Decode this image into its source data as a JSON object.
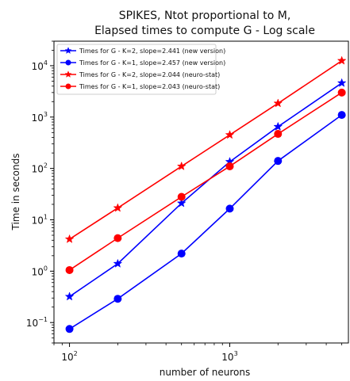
{
  "chart_data": {
    "type": "line",
    "title": "SPIKES, Ntot proportional to M,",
    "subtitle": "Elapsed times to compute G - Log scale",
    "xlabel": "number of neurons",
    "ylabel": "Time in seconds",
    "x_scale": "log",
    "y_scale": "log",
    "xlim": [
      80,
      5500
    ],
    "ylim": [
      0.04,
      30000
    ],
    "x_ticks": [
      {
        "value": 100,
        "base": "10",
        "exp": "2"
      },
      {
        "value": 1000,
        "base": "10",
        "exp": "3"
      }
    ],
    "y_ticks": [
      {
        "value": 0.1,
        "base": "10",
        "exp": "−1"
      },
      {
        "value": 1,
        "base": "10",
        "exp": "0"
      },
      {
        "value": 10,
        "base": "10",
        "exp": "1"
      },
      {
        "value": 100,
        "base": "10",
        "exp": "2"
      },
      {
        "value": 1000,
        "base": "10",
        "exp": "3"
      },
      {
        "value": 10000,
        "base": "10",
        "exp": "4"
      }
    ],
    "x": [
      100,
      200,
      500,
      1000,
      2000,
      5000
    ],
    "series": [
      {
        "name": "Times for G - K=2, slope=2.441 (new version)",
        "color": "#0000ff",
        "marker": "star",
        "values": [
          0.32,
          1.4,
          21,
          135,
          650,
          4600
        ]
      },
      {
        "name": "Times for G - K=1, slope=2.457 (new version)",
        "color": "#0000ff",
        "marker": "circle",
        "values": [
          0.075,
          0.29,
          2.2,
          16.5,
          140,
          1100
        ]
      },
      {
        "name": "Times for G - K=2, slope=2.044 (neuro-stat)",
        "color": "#ff0000",
        "marker": "star",
        "values": [
          4.2,
          17,
          110,
          450,
          1850,
          12500
        ]
      },
      {
        "name": "Times for G - K=1, slope=2.043 (neuro-stat)",
        "color": "#ff0000",
        "marker": "circle",
        "values": [
          1.05,
          4.4,
          28,
          110,
          470,
          3000
        ]
      }
    ],
    "legend_position": "top-left",
    "grid": false
  }
}
